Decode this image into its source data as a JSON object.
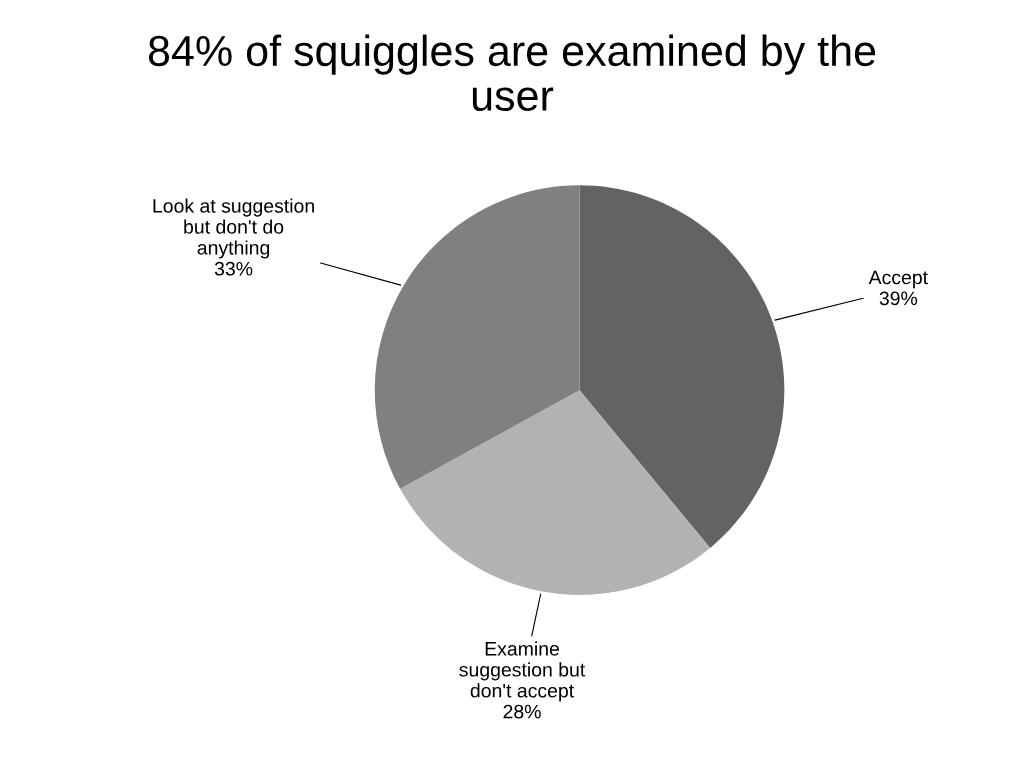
{
  "chart_data": {
    "type": "pie",
    "title": "84% of squiggles are examined by the\nuser",
    "categories": [
      "Accept",
      "Examine\nsuggestion but\ndon't accept",
      "Look at suggestion\nbut don't do\nanything"
    ],
    "values": [
      39,
      28,
      33
    ],
    "value_labels": [
      "39%",
      "28%",
      "33%"
    ],
    "colors": [
      "#636363",
      "#b2b2b2",
      "#808080"
    ]
  }
}
